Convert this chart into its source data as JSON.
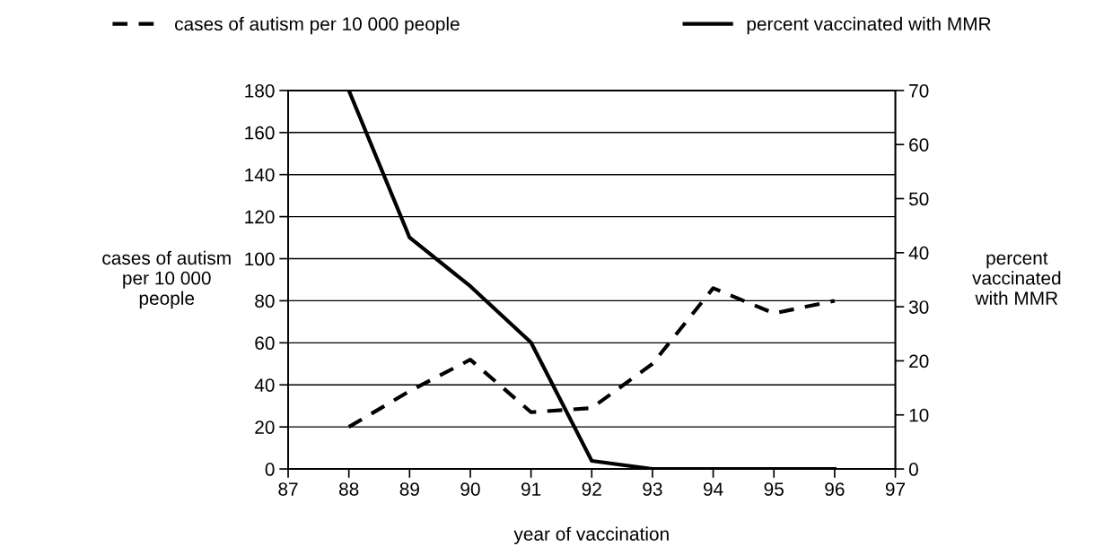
{
  "chart_data": {
    "type": "line",
    "xlabel": "year of vaccination",
    "ylabel": "cases of autism\nper 10 000\npeople",
    "y2label": "percent\nvaccinated\nwith MMR",
    "x": [
      88,
      89,
      90,
      91,
      92,
      93,
      94,
      95,
      96
    ],
    "series": [
      {
        "name": "cases of autism per 10 000 people",
        "color": "#000000",
        "line_style": "dashed",
        "values": [
          20,
          37,
          52,
          27,
          29,
          50,
          86,
          74,
          80
        ]
      },
      {
        "name": "percent vaccinated with MMR",
        "color": "#000000",
        "line_style": "solid",
        "axis": "y2",
        "values": [
          70,
          42.8,
          33.8,
          23.4,
          1.5,
          0,
          0,
          0,
          0
        ]
      }
    ],
    "xlim": [
      87,
      97
    ],
    "xticks": [
      87,
      88,
      89,
      90,
      91,
      92,
      93,
      94,
      95,
      96,
      97
    ],
    "ylim": [
      0,
      180
    ],
    "yticks": [
      0,
      20,
      40,
      60,
      80,
      100,
      120,
      140,
      160,
      180
    ],
    "y2lim": [
      0,
      70
    ],
    "y2ticks": [
      0,
      10,
      20,
      30,
      40,
      50,
      60,
      70
    ],
    "grid": "y",
    "legend": "top",
    "marker": "none"
  }
}
